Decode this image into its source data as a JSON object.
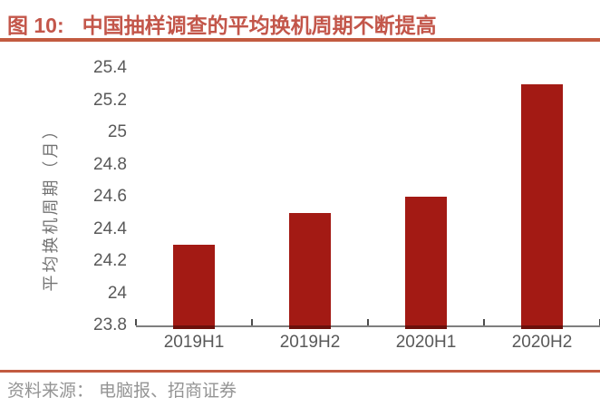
{
  "header": {
    "title_prefix": "图 10:",
    "title_text": "中国抽样调查的平均换机周期不断提高"
  },
  "footer": {
    "source_label": "资料来源：",
    "source_text": "电脑报、招商证券"
  },
  "colors": {
    "bar": "#A31A14",
    "bar_bottom_edge": "#6B100B",
    "title": "#C3564A",
    "rule": "#C25B40",
    "axis_text": "#595959",
    "axis_line": "#7F7F7F",
    "source_text": "#949494"
  },
  "chart_data": {
    "type": "bar",
    "title": "中国抽样调查的平均换机周期不断提高",
    "categories": [
      "2019H1",
      "2019H2",
      "2020H1",
      "2020H2"
    ],
    "values": [
      24.3,
      24.5,
      24.6,
      25.3
    ],
    "xlabel": "",
    "ylabel": "平均换机周期（月）",
    "ylim": [
      23.8,
      25.4
    ],
    "ytick_step": 0.2,
    "yticks": [
      23.8,
      24,
      24.2,
      24.4,
      24.6,
      24.8,
      25,
      25.2,
      25.4
    ],
    "grid": false,
    "legend": false,
    "bar_color": "#A31A14"
  }
}
